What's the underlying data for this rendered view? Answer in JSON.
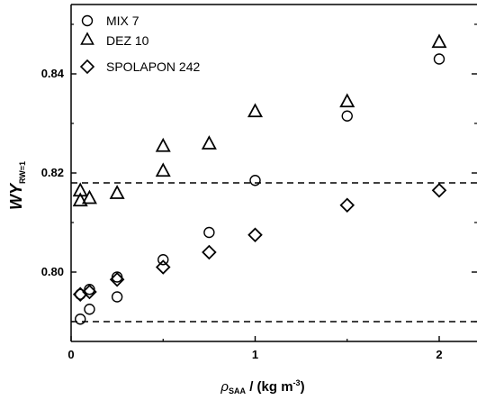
{
  "chart_data": {
    "type": "scatter",
    "xlabel": {
      "symbol": "ρ",
      "sub": "SAA",
      "text": " / (kg m",
      "sup": "-3",
      "end": ")"
    },
    "ylabel": {
      "main": "WY",
      "sub": "RW=1"
    },
    "xlim": [
      0,
      2.2
    ],
    "ylim": [
      0.786,
      0.854
    ],
    "x_ticks": [
      0,
      1,
      2
    ],
    "x_tick_labels": [
      "0",
      "1",
      "2"
    ],
    "y_ticks": [
      0.8,
      0.82,
      0.84
    ],
    "y_tick_labels": [
      "0.80",
      "0.82",
      "0.84"
    ],
    "grid": false,
    "legend_position": "top-left",
    "reference_lines": [
      0.818,
      0.79
    ],
    "series": [
      {
        "name": "MIX 7",
        "marker": "circle",
        "points": [
          [
            0.05,
            0.7905
          ],
          [
            0.1,
            0.7925
          ],
          [
            0.05,
            0.7955
          ],
          [
            0.1,
            0.7965
          ],
          [
            0.25,
            0.795
          ],
          [
            0.25,
            0.799
          ],
          [
            0.5,
            0.8025
          ],
          [
            0.75,
            0.808
          ],
          [
            1.0,
            0.8185
          ],
          [
            1.5,
            0.8315
          ],
          [
            2.0,
            0.843
          ]
        ]
      },
      {
        "name": "DEZ 10",
        "marker": "triangle",
        "points": [
          [
            0.05,
            0.8165
          ],
          [
            0.05,
            0.8145
          ],
          [
            0.1,
            0.815
          ],
          [
            0.25,
            0.816
          ],
          [
            0.5,
            0.8205
          ],
          [
            0.5,
            0.8255
          ],
          [
            0.75,
            0.826
          ],
          [
            1.0,
            0.8325
          ],
          [
            1.5,
            0.8345
          ],
          [
            2.0,
            0.8465
          ]
        ]
      },
      {
        "name": "SPOLAPON 242",
        "marker": "diamond",
        "points": [
          [
            0.05,
            0.7955
          ],
          [
            0.1,
            0.796
          ],
          [
            0.25,
            0.7985
          ],
          [
            0.5,
            0.801
          ],
          [
            0.75,
            0.804
          ],
          [
            1.0,
            0.8075
          ],
          [
            1.5,
            0.8135
          ],
          [
            2.0,
            0.8165
          ]
        ]
      }
    ]
  }
}
